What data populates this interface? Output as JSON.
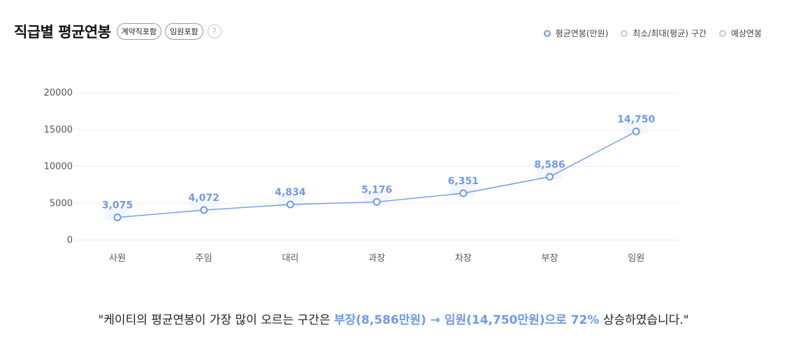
{
  "header": {
    "title": "직급별 평균연봉",
    "badges": [
      "계약직포함",
      "임원포함"
    ],
    "help_glyph": "?"
  },
  "legend": {
    "items": [
      "평균연봉(만원)",
      "최소/최대(평균) 구간",
      "예상연봉"
    ]
  },
  "colors": {
    "accent": "#6e99ee",
    "grid": "#eeeeee",
    "axis_text": "#555555"
  },
  "chart_data": {
    "type": "line",
    "title": "",
    "xlabel": "",
    "ylabel": "",
    "categories": [
      "사원",
      "주임",
      "대리",
      "과장",
      "차장",
      "부장",
      "임원"
    ],
    "series": [
      {
        "name": "평균연봉(만원)",
        "values": [
          3075,
          4072,
          4834,
          5176,
          6351,
          8586,
          14750
        ]
      }
    ],
    "data_labels": [
      "3,075",
      "4,072",
      "4,834",
      "5,176",
      "6,351",
      "8,586",
      "14,750"
    ],
    "yticks": [
      "0",
      "5000",
      "10000",
      "15000",
      "20000"
    ],
    "ylim": [
      0,
      20000
    ],
    "grid": true
  },
  "summary": {
    "prefix": "\"케이티의 평균연봉이 가장 많이 오르는 구간은 ",
    "highlight": "부장(8,586만원) → 임원(14,750만원)으로 72%",
    "suffix": " 상승하였습니다.\""
  }
}
